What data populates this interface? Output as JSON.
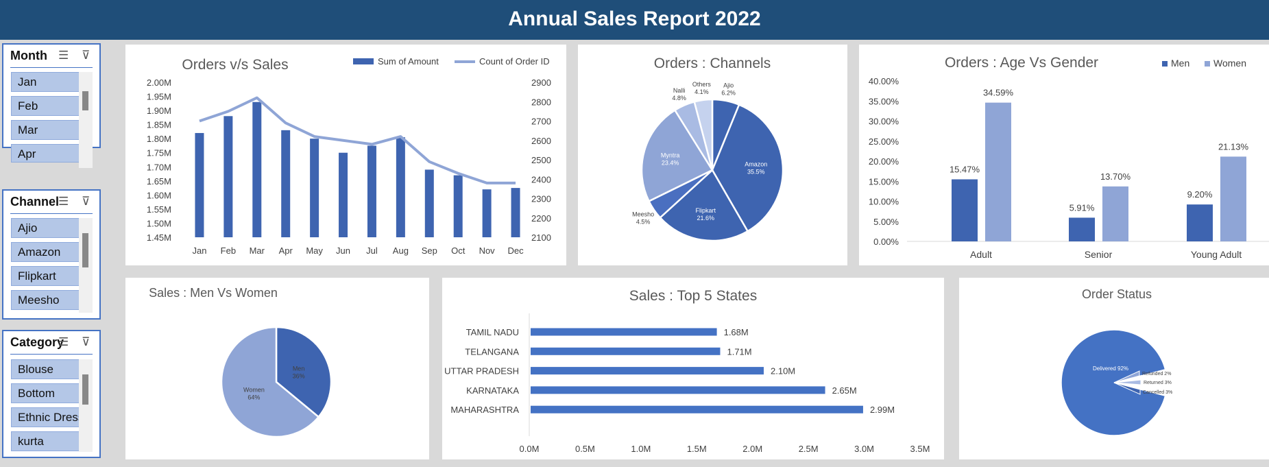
{
  "header": {
    "title": "Annual Sales Report 2022"
  },
  "slicers": [
    {
      "title": "Month",
      "items": [
        "Jan",
        "Feb",
        "Mar",
        "Apr"
      ]
    },
    {
      "title": "Channel",
      "items": [
        "Ajio",
        "Amazon",
        "Flipkart",
        "Meesho"
      ]
    },
    {
      "title": "Category",
      "items": [
        "Blouse",
        "Bottom",
        "Ethnic Dress",
        "kurta"
      ]
    }
  ],
  "icons": {
    "multiselect": "multi-select-icon",
    "clear_filter": "clear-filter-icon"
  },
  "colors": {
    "primary": "#3e64b0",
    "secondary": "#8fa5d6",
    "header": "#1f4e79",
    "bar_blue": "#4472c4"
  },
  "chart_data": [
    {
      "type": "bar",
      "title": "Orders v/s Sales",
      "categories": [
        "Jan",
        "Feb",
        "Mar",
        "Apr",
        "May",
        "Jun",
        "Jul",
        "Aug",
        "Sep",
        "Oct",
        "Nov",
        "Dec"
      ],
      "series": [
        {
          "name": "Sum of Amount",
          "type": "bar",
          "axis": "left",
          "values": [
            1.82,
            1.88,
            1.93,
            1.83,
            1.8,
            1.75,
            1.775,
            1.805,
            1.69,
            1.67,
            1.62,
            1.625
          ]
        },
        {
          "name": "Count of Order ID",
          "type": "line",
          "axis": "right",
          "values": [
            2700,
            2750,
            2820,
            2690,
            2620,
            2600,
            2580,
            2620,
            2490,
            2430,
            2380,
            2380
          ]
        }
      ],
      "left_ticks": [
        "2.00M",
        "1.95M",
        "1.90M",
        "1.85M",
        "1.80M",
        "1.75M",
        "1.70M",
        "1.65M",
        "1.60M",
        "1.55M",
        "1.50M",
        "1.45M"
      ],
      "right_ticks": [
        "2900",
        "2800",
        "2700",
        "2600",
        "2500",
        "2400",
        "2300",
        "2200",
        "2100"
      ],
      "ylim_left": [
        1.45,
        2.0
      ],
      "ylim_right": [
        2100,
        2900
      ],
      "legend": "top-right"
    },
    {
      "type": "pie",
      "title": "Orders : Channels",
      "slices": [
        {
          "label": "Ajio",
          "pct": "6.2%",
          "value": 6.2,
          "color": "#3e64b0"
        },
        {
          "label": "Amazon",
          "pct": "35.5%",
          "value": 35.5,
          "color": "#3e64b0"
        },
        {
          "label": "Flipkart",
          "pct": "21.6%",
          "value": 21.6,
          "color": "#3e64b0"
        },
        {
          "label": "Meesho",
          "pct": "4.5%",
          "value": 4.5,
          "color": "#4a6fc0"
        },
        {
          "label": "Myntra",
          "pct": "23.4%",
          "value": 23.4,
          "color": "#8fa5d6"
        },
        {
          "label": "Nalli",
          "pct": "4.8%",
          "value": 4.8,
          "color": "#a9bbe3"
        },
        {
          "label": "Others",
          "pct": "4.1%",
          "value": 4.1,
          "color": "#c5d2ee"
        }
      ]
    },
    {
      "type": "bar",
      "title": "Orders : Age Vs Gender",
      "categories": [
        "Adult",
        "Senior",
        "Young Adult"
      ],
      "series": [
        {
          "name": "Men",
          "values": [
            15.47,
            5.91,
            9.2
          ],
          "labels": [
            "15.47%",
            "5.91%",
            "9.20%"
          ],
          "color": "#3e64b0"
        },
        {
          "name": "Women",
          "values": [
            34.59,
            13.7,
            21.13
          ],
          "labels": [
            "34.59%",
            "13.70%",
            "21.13%"
          ],
          "color": "#8fa5d6"
        }
      ],
      "y_ticks": [
        "40.00%",
        "35.00%",
        "30.00%",
        "25.00%",
        "20.00%",
        "15.00%",
        "10.00%",
        "5.00%",
        "0.00%"
      ],
      "ylim": [
        0,
        40
      ],
      "legend": "top-right"
    },
    {
      "type": "pie",
      "title": "Sales : Men Vs Women",
      "slices": [
        {
          "label": "Men",
          "pct": "36%",
          "value": 36,
          "color": "#3e64b0"
        },
        {
          "label": "Women",
          "pct": "64%",
          "value": 64,
          "color": "#8fa5d6"
        }
      ]
    },
    {
      "type": "bar",
      "orientation": "horizontal",
      "title": "Sales : Top 5 States",
      "categories": [
        "TAMIL NADU",
        "TELANGANA",
        "UTTAR PRADESH",
        "KARNATAKA",
        "MAHARASHTRA"
      ],
      "values": [
        1.68,
        1.71,
        2.1,
        2.65,
        2.99
      ],
      "value_labels": [
        "1.68M",
        "1.71M",
        "2.10M",
        "2.65M",
        "2.99M"
      ],
      "x_ticks": [
        "0.0M",
        "0.5M",
        "1.0M",
        "1.5M",
        "2.0M",
        "2.5M",
        "3.0M",
        "3.5M"
      ],
      "xlim": [
        0,
        3.5
      ]
    },
    {
      "type": "pie",
      "title": "Order Status",
      "slices": [
        {
          "label": "Delivered 92%",
          "value": 92,
          "color": "#4472c4"
        },
        {
          "label": "Refunded 2%",
          "value": 2,
          "color": "#8fa5d6"
        },
        {
          "label": "Returned 3%",
          "value": 3,
          "color": "#a9bbe3"
        },
        {
          "label": "Cancelled 3%",
          "value": 3,
          "color": "#3e64b0"
        }
      ]
    }
  ]
}
